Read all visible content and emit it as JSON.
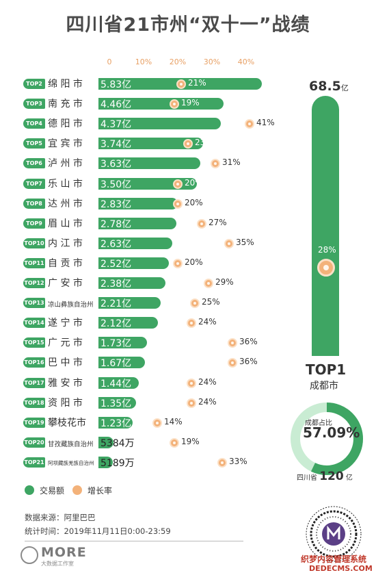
{
  "page": {
    "title": "四川省21市州“双十一”战绩"
  },
  "chart_data": {
    "type": "bar",
    "series_names": [
      "交易额",
      "增长率"
    ],
    "rate_ticks": [
      "0",
      "10%",
      "20%",
      "30%",
      "40%"
    ],
    "rate_max": 45,
    "amount_unit": "亿",
    "rows": [
      {
        "rank": "TOP2",
        "city": "绵 阳 市",
        "amount": 5.83,
        "amount_label": "5.83亿",
        "rate": 21,
        "rate_label": "21%"
      },
      {
        "rank": "TOP3",
        "city": "南 充 市",
        "amount": 4.46,
        "amount_label": "4.46亿",
        "rate": 19,
        "rate_label": "19%"
      },
      {
        "rank": "TOP4",
        "city": "德 阳 市",
        "amount": 4.37,
        "amount_label": "4.37亿",
        "rate": 41,
        "rate_label": "41%"
      },
      {
        "rank": "TOP5",
        "city": "宜 宾 市",
        "amount": 3.74,
        "amount_label": "3.74亿",
        "rate": 23,
        "rate_label": "23%"
      },
      {
        "rank": "TOP6",
        "city": "泸 州 市",
        "amount": 3.63,
        "amount_label": "3.63亿",
        "rate": 31,
        "rate_label": "31%"
      },
      {
        "rank": "TOP7",
        "city": "乐 山 市",
        "amount": 3.5,
        "amount_label": "3.50亿",
        "rate": 20,
        "rate_label": "20%"
      },
      {
        "rank": "TOP8",
        "city": "达 州 市",
        "amount": 2.83,
        "amount_label": "2.83亿",
        "rate": 20,
        "rate_label": "20%"
      },
      {
        "rank": "TOP9",
        "city": "眉 山 市",
        "amount": 2.78,
        "amount_label": "2.78亿",
        "rate": 27,
        "rate_label": "27%"
      },
      {
        "rank": "TOP10",
        "city": "内 江 市",
        "amount": 2.63,
        "amount_label": "2.63亿",
        "rate": 35,
        "rate_label": "35%"
      },
      {
        "rank": "TOP11",
        "city": "自 贡 市",
        "amount": 2.52,
        "amount_label": "2.52亿",
        "rate": 20,
        "rate_label": "20%"
      },
      {
        "rank": "TOP12",
        "city": "广 安 市",
        "amount": 2.38,
        "amount_label": "2.38亿",
        "rate": 29,
        "rate_label": "29%"
      },
      {
        "rank": "TOP13",
        "city": "凉山彝族自治州",
        "amount": 2.21,
        "amount_label": "2.21亿",
        "rate": 25,
        "rate_label": "25%"
      },
      {
        "rank": "TOP14",
        "city": "遂 宁 市",
        "amount": 2.12,
        "amount_label": "2.12亿",
        "rate": 24,
        "rate_label": "24%"
      },
      {
        "rank": "TOP15",
        "city": "广 元 市",
        "amount": 1.73,
        "amount_label": "1.73亿",
        "rate": 36,
        "rate_label": "36%"
      },
      {
        "rank": "TOP16",
        "city": "巴 中 市",
        "amount": 1.67,
        "amount_label": "1.67亿",
        "rate": 36,
        "rate_label": "36%"
      },
      {
        "rank": "TOP17",
        "city": "雅 安 市",
        "amount": 1.44,
        "amount_label": "1.44亿",
        "rate": 24,
        "rate_label": "24%"
      },
      {
        "rank": "TOP18",
        "city": "资 阳 市",
        "amount": 1.35,
        "amount_label": "1.35亿",
        "rate": 24,
        "rate_label": "24%"
      },
      {
        "rank": "TOP19",
        "city": "攀枝花市",
        "amount": 1.23,
        "amount_label": "1.23亿",
        "rate": 14,
        "rate_label": "14%"
      },
      {
        "rank": "TOP20",
        "city": "甘孜藏族自治州",
        "amount": 0.5384,
        "amount_label": "5384万",
        "rate": 19,
        "rate_label": "19%"
      },
      {
        "rank": "TOP21",
        "city": "阿坝藏族羌族自治州",
        "amount": 0.5189,
        "amount_label": "5189万",
        "rate": 33,
        "rate_label": "33%"
      }
    ],
    "top1": {
      "rank": "TOP1",
      "city": "成都市",
      "amount": 68.5,
      "amount_value": "68.5",
      "amount_unit": "亿",
      "rate": 28,
      "rate_label": "28%",
      "share_label": "成都占比",
      "share": 57.09,
      "share_text": "57.09%",
      "province_label": "四川省",
      "province_total": "120",
      "province_unit": "亿"
    },
    "colors": {
      "amount": "#3ea563",
      "rate": "#f3b27a",
      "donut_bg": "#c9ecd3"
    }
  },
  "legend": {
    "amount_label": "交易额",
    "rate_label": "增长率"
  },
  "footer": {
    "source": "数据来源：阿里巴巴",
    "time": "统计时间：2019年11月11日0:00-23:59",
    "logo_text": "MORE",
    "logo_sub": "大数据工作室",
    "watermark": "织梦内容管理系统",
    "watermark2": "DEDECMS.COM"
  },
  "icons": {
    "logo": "more-logo-icon",
    "qr": "qr-code-icon"
  }
}
